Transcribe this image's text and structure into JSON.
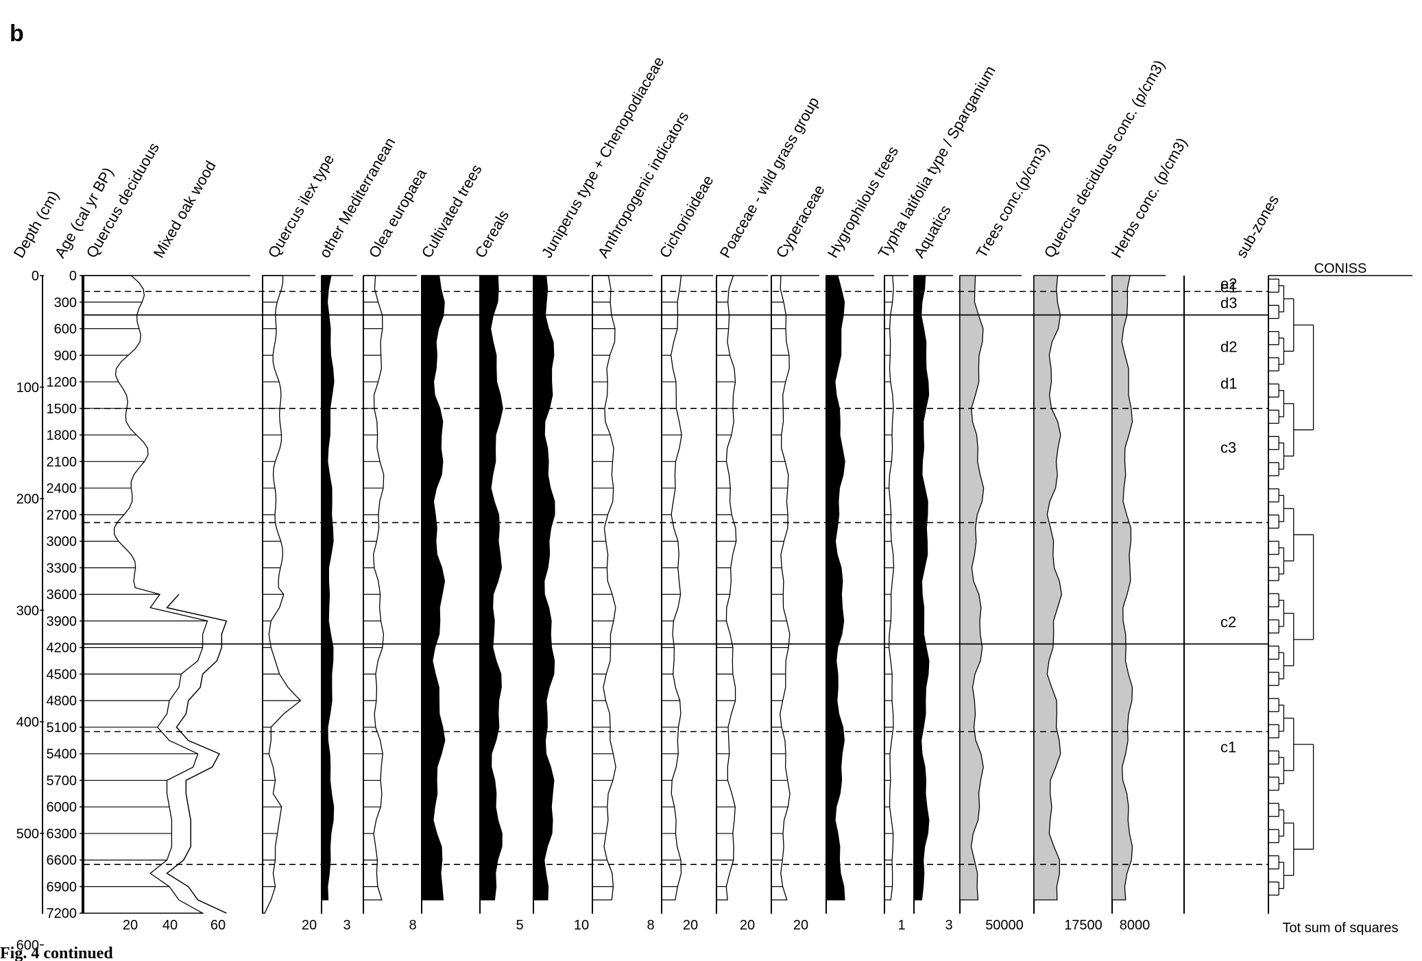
{
  "panel_label": "b",
  "footer": "Fig. 4 continued",
  "chart_data": {
    "type": "pollen-diagram",
    "depth_axis": {
      "label": "Depth (cm)",
      "ticks": [
        0,
        100,
        200,
        300,
        400,
        500,
        600
      ],
      "range": [
        0,
        640
      ]
    },
    "age_axis": {
      "label": "Age (cal yr BP)",
      "ticks": [
        0,
        300,
        600,
        900,
        1200,
        1500,
        1800,
        2100,
        2400,
        2700,
        3000,
        3300,
        3600,
        3900,
        4200,
        4500,
        4800,
        5100,
        5400,
        5700,
        6000,
        6300,
        6600,
        6900,
        7200
      ]
    },
    "columns": [
      {
        "name": "Quercus deciduous",
        "style": "line"
      },
      {
        "name": "Mixed oak wood",
        "style": "line"
      },
      {
        "name": "Quercus ilex type",
        "style": "line"
      },
      {
        "name": "other Mediterranean",
        "style": "black"
      },
      {
        "name": "Olea europaea",
        "style": "line"
      },
      {
        "name": "Cultivated trees",
        "style": "black"
      },
      {
        "name": "Cereals",
        "style": "black"
      },
      {
        "name": "Juniperus type + Chenopodiaceae",
        "style": "black"
      },
      {
        "name": "Anthropogenic indicators",
        "style": "line"
      },
      {
        "name": "Cichorioideae",
        "style": "line"
      },
      {
        "name": "Poaceae - wild grass group",
        "style": "line"
      },
      {
        "name": "Cyperaceae",
        "style": "line"
      },
      {
        "name": "Hygrophilous trees",
        "style": "black"
      },
      {
        "name": "Typha latifolia type / Sparganium",
        "style": "line"
      },
      {
        "name": "Aquatics",
        "style": "black"
      },
      {
        "name": "Trees conc.(p/cm3)",
        "style": "grey"
      },
      {
        "name": "Quercus deciduous conc. (p/cm3)",
        "style": "grey"
      },
      {
        "name": "Herbs conc. (p/cm3)",
        "style": "grey"
      }
    ],
    "x_ticks": [
      "20",
      "40",
      "60",
      "20",
      "3",
      "8",
      "5",
      "10",
      "8",
      "20",
      "20",
      "20",
      "1",
      "3",
      "50000",
      "17500",
      "8000"
    ],
    "subzones_label": "sub-zones",
    "subzones": [
      "e2",
      "e1",
      "d3",
      "d2",
      "d1",
      "c3",
      "c2",
      "c1"
    ],
    "coniss": {
      "title": "CONISS",
      "xlabel": "Tot sum of squares"
    },
    "profiles": {
      "quercus_deciduous": [
        [
          3600,
          32
        ],
        [
          3750,
          28
        ],
        [
          3900,
          52
        ],
        [
          4050,
          50
        ],
        [
          4200,
          50
        ],
        [
          4350,
          48
        ],
        [
          4500,
          41
        ],
        [
          4650,
          40
        ],
        [
          4800,
          36
        ],
        [
          4950,
          35
        ],
        [
          5100,
          31
        ],
        [
          5250,
          36
        ],
        [
          5400,
          48
        ],
        [
          5550,
          46
        ],
        [
          5700,
          35
        ],
        [
          5850,
          35
        ],
        [
          6000,
          36
        ],
        [
          6150,
          37
        ],
        [
          6300,
          37
        ],
        [
          6450,
          37
        ],
        [
          6600,
          35
        ],
        [
          6750,
          28
        ],
        [
          6900,
          36
        ],
        [
          7050,
          40
        ],
        [
          7200,
          50
        ]
      ],
      "mixed_oak_wood": [
        [
          3600,
          40
        ],
        [
          3750,
          35
        ],
        [
          3900,
          60
        ],
        [
          4050,
          58
        ],
        [
          4200,
          58
        ],
        [
          4350,
          56
        ],
        [
          4500,
          50
        ],
        [
          4650,
          49
        ],
        [
          4800,
          44
        ],
        [
          4950,
          43
        ],
        [
          5100,
          39
        ],
        [
          5250,
          44
        ],
        [
          5400,
          57
        ],
        [
          5550,
          54
        ],
        [
          5700,
          43
        ],
        [
          5850,
          43
        ],
        [
          6000,
          44
        ],
        [
          6150,
          45
        ],
        [
          6300,
          45
        ],
        [
          6450,
          45
        ],
        [
          6600,
          42
        ],
        [
          6750,
          35
        ],
        [
          6900,
          44
        ],
        [
          7050,
          48
        ],
        [
          7200,
          60
        ]
      ],
      "quercus_ilex": [
        [
          3600,
          10
        ],
        [
          3750,
          8
        ],
        [
          3900,
          4
        ],
        [
          4050,
          3
        ],
        [
          4200,
          4
        ],
        [
          4350,
          6
        ],
        [
          4500,
          8
        ],
        [
          4650,
          12
        ],
        [
          4800,
          18
        ],
        [
          4950,
          10
        ],
        [
          5100,
          4
        ],
        [
          5250,
          4
        ],
        [
          5400,
          3
        ],
        [
          5550,
          5
        ],
        [
          5700,
          6
        ],
        [
          5850,
          5
        ],
        [
          6000,
          9
        ],
        [
          6150,
          8
        ],
        [
          6300,
          7
        ],
        [
          6450,
          6
        ],
        [
          6600,
          6
        ],
        [
          6750,
          5
        ],
        [
          6900,
          6
        ],
        [
          7050,
          4
        ],
        [
          7200,
          1
        ]
      ]
    }
  }
}
